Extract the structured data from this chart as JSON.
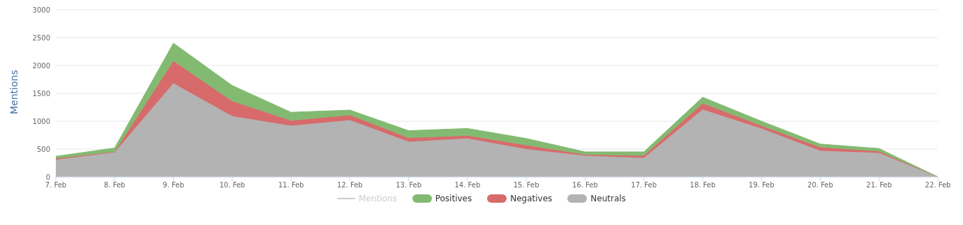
{
  "chart_data": {
    "type": "area",
    "ylabel": "Mentions",
    "stacked": true,
    "categories": [
      "7. Feb",
      "8. Feb",
      "9. Feb",
      "10. Feb",
      "11. Feb",
      "12. Feb",
      "13. Feb",
      "14. Feb",
      "15. Feb",
      "16. Feb",
      "17. Feb",
      "18. Feb",
      "19. Feb",
      "20. Feb",
      "21. Feb",
      "22. Feb"
    ],
    "series": [
      {
        "name": "Mentions",
        "type": "line",
        "color": "#cccccc",
        "values": [
          null,
          null,
          null,
          null,
          null,
          null,
          null,
          null,
          null,
          null,
          null,
          null,
          null,
          null,
          null,
          null
        ]
      },
      {
        "name": "Positives",
        "color": "#83ba72",
        "values": [
          40,
          70,
          320,
          280,
          150,
          90,
          130,
          130,
          120,
          50,
          70,
          110,
          80,
          60,
          50,
          0
        ]
      },
      {
        "name": "Negatives",
        "color": "#d76b6b",
        "values": [
          20,
          10,
          400,
          270,
          90,
          90,
          70,
          50,
          70,
          20,
          40,
          110,
          50,
          60,
          30,
          0
        ]
      },
      {
        "name": "Neutrals",
        "color": "#b3b3b3",
        "values": [
          310,
          440,
          1680,
          1090,
          920,
          1020,
          630,
          690,
          500,
          380,
          340,
          1210,
          870,
          470,
          430,
          0
        ]
      }
    ],
    "ylim": [
      0,
      3000
    ],
    "yticks": [
      0,
      500,
      1000,
      1500,
      2000,
      2500,
      3000
    ],
    "grid": "y",
    "legend": "bottom"
  }
}
